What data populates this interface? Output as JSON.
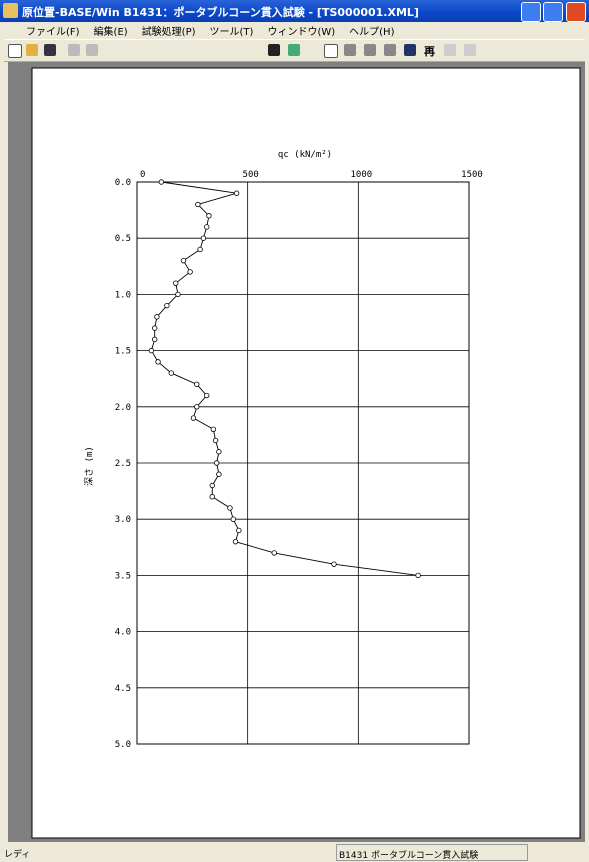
{
  "window": {
    "title": "原位置-BASE/Win B1431：ポータブルコーン貫入試験 - [TS000001.XML]"
  },
  "menu": [
    "ファイル(F)",
    "編集(E)",
    "試験処理(P)",
    "ツール(T)",
    "ウィンドウ(W)",
    "ヘルプ(H)"
  ],
  "toolbar": {
    "redraw_icon": "再"
  },
  "status": {
    "left": "レディ",
    "right": "B1431 ポータブルコーン貫入試験"
  },
  "chart_data": {
    "type": "line",
    "x_label": "qc (kN/m²)",
    "y_label": "深さ (m)",
    "x": [
      110,
      450,
      275,
      325,
      315,
      300,
      285,
      210,
      240,
      175,
      185,
      135,
      90,
      80,
      80,
      65,
      95,
      155,
      270,
      315,
      270,
      255,
      345,
      355,
      370,
      360,
      370,
      340,
      340,
      420,
      435,
      460,
      445,
      620,
      890,
      1270
    ],
    "values": [
      0,
      0.1,
      0.2,
      0.3,
      0.4,
      0.5,
      0.6,
      0.7,
      0.8,
      0.9,
      1,
      1.1,
      1.2,
      1.3,
      1.4,
      1.5,
      1.6,
      1.7,
      1.8,
      1.9,
      2,
      2.1,
      2.2,
      2.3,
      2.4,
      2.5,
      2.6,
      2.7,
      2.8,
      2.9,
      3,
      3.1,
      3.2,
      3.3,
      3.4,
      3.5
    ],
    "color": "#000000",
    "xlim": [
      0,
      1500
    ],
    "xticks": [
      0,
      500,
      1000,
      1500
    ],
    "ylim": [
      0,
      5
    ],
    "y_inverted": true,
    "yticks": [
      {
        "value": 0,
        "label": "0.0"
      },
      0.5,
      {
        "value": 1,
        "label": "1.0"
      },
      1.5,
      {
        "value": 2,
        "label": "2.0"
      },
      2.5,
      {
        "value": 3,
        "label": "3.0"
      },
      3.5,
      {
        "value": 4,
        "label": "4.0"
      },
      4.5,
      {
        "value": 5,
        "label": "5.0"
      }
    ],
    "grid": true
  }
}
